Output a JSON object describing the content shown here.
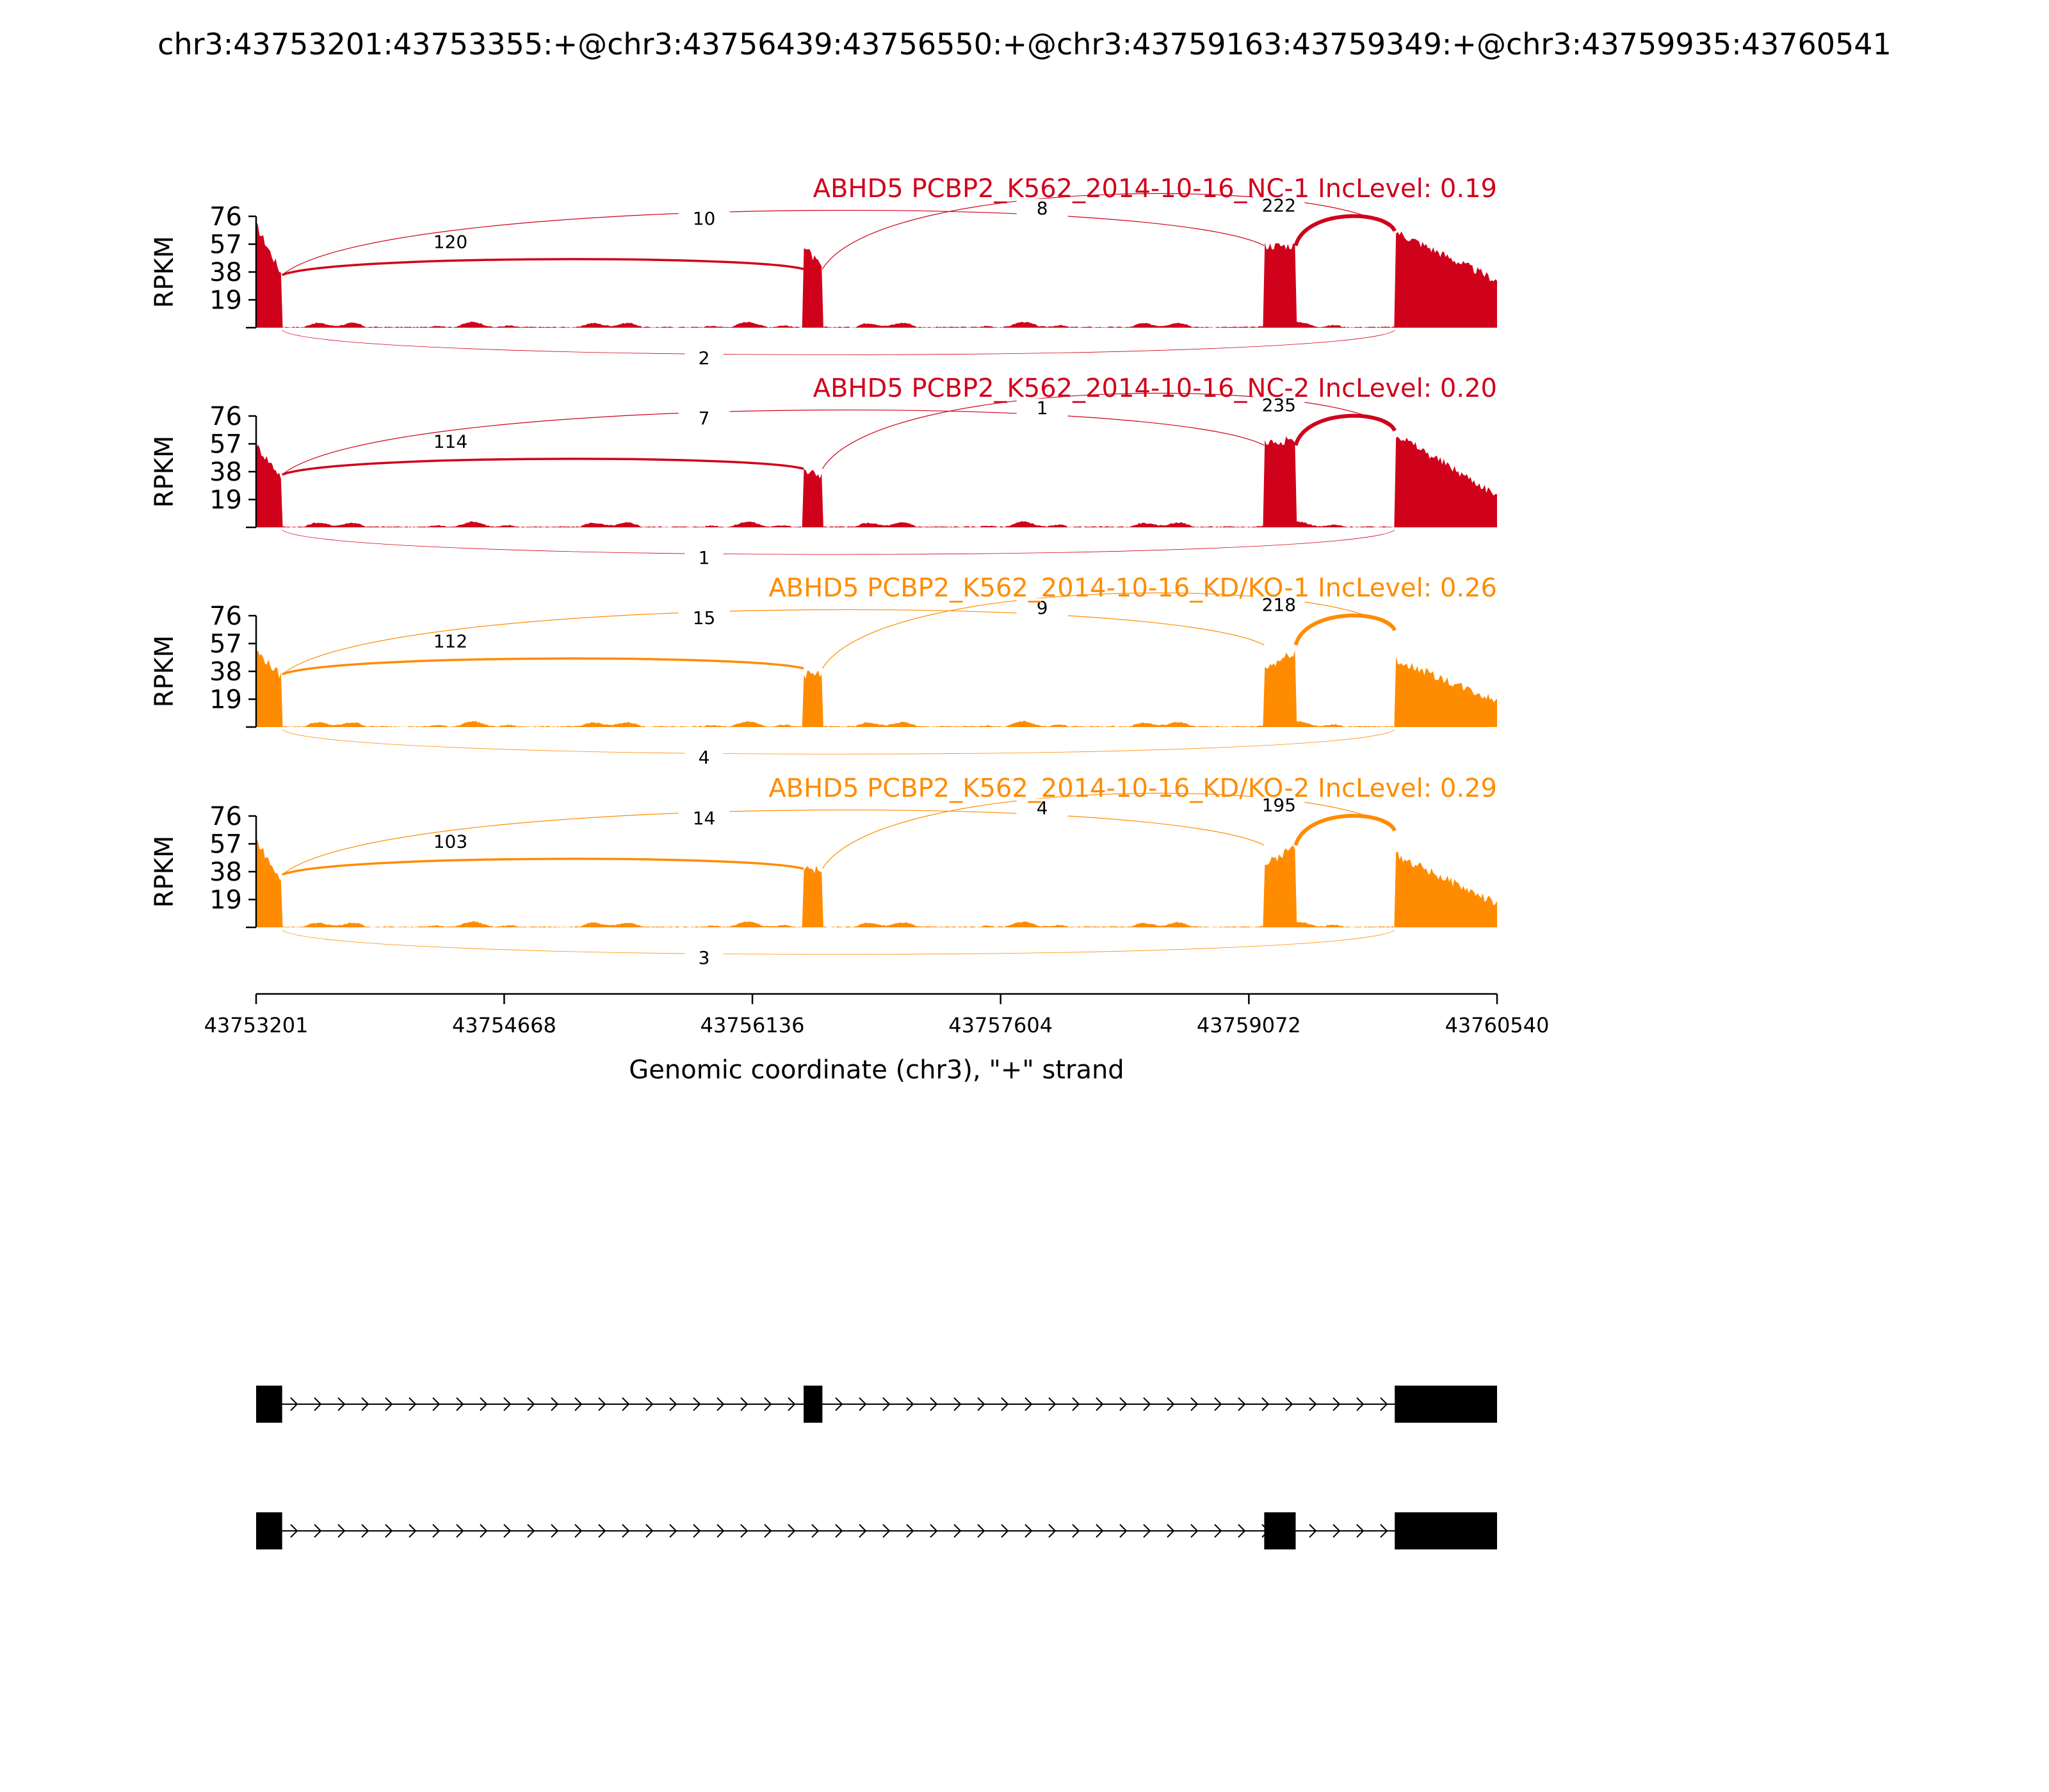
{
  "title": "chr3:43753201:43753355:+@chr3:43756439:43756550:+@chr3:43759163:43759349:+@chr3:43759935:43760541",
  "colors": {
    "nc": "#d0021b",
    "kd": "#ff8c00",
    "axis": "#000000",
    "exon": "#000000"
  },
  "chart_data": {
    "type": "area",
    "subtype": "sashimi",
    "ylabel": "RPKM",
    "y_ticks": [
      19,
      38,
      57,
      76
    ],
    "ylim": [
      0,
      76
    ],
    "xlim": [
      43753201,
      43760540
    ],
    "x_ticks": [
      43753201,
      43754668,
      43756136,
      43757604,
      43759072,
      43760540
    ],
    "x_tick_labels": [
      "43753201",
      "43754668",
      "43756136",
      "43757604",
      "43759072",
      "43760540"
    ],
    "xlabel": "Genomic coordinate (chr3), \"+\" strand",
    "grid": false,
    "samples": [
      {
        "label": "ABHD5 PCBP2_K562_2014-10-16_NC-1 IncLevel: 0.19",
        "color": "#d0021b",
        "exon_coverage": [
          {
            "start": 43753201,
            "end": 43753355,
            "peak": 70,
            "tail": 36
          },
          {
            "start": 43756439,
            "end": 43756550,
            "peak": 56,
            "tail": 40
          },
          {
            "start": 43759163,
            "end": 43759349,
            "peak": 56,
            "tail": 56
          },
          {
            "start": 43759935,
            "end": 43760540,
            "peak": 66,
            "tail": 32
          }
        ],
        "junctions": {
          "j_1_2": 120,
          "j_1_3": 10,
          "j_2_4": 8,
          "j_3_4": 222,
          "j_1_4": 2
        }
      },
      {
        "label": "ABHD5 PCBP2_K562_2014-10-16_NC-2 IncLevel: 0.20",
        "color": "#d0021b",
        "exon_coverage": [
          {
            "start": 43753201,
            "end": 43753355,
            "peak": 56,
            "tail": 34
          },
          {
            "start": 43756439,
            "end": 43756550,
            "peak": 38,
            "tail": 36
          },
          {
            "start": 43759163,
            "end": 43759349,
            "peak": 58,
            "tail": 60
          },
          {
            "start": 43759935,
            "end": 43760540,
            "peak": 64,
            "tail": 22
          }
        ],
        "junctions": {
          "j_1_2": 114,
          "j_1_3": 7,
          "j_2_4": 1,
          "j_3_4": 235,
          "j_1_4": 1
        }
      },
      {
        "label": "ABHD5 PCBP2_K562_2014-10-16_KD/KO-1 IncLevel: 0.26",
        "color": "#ff8c00",
        "exon_coverage": [
          {
            "start": 43753201,
            "end": 43753355,
            "peak": 52,
            "tail": 34
          },
          {
            "start": 43756439,
            "end": 43756550,
            "peak": 36,
            "tail": 36
          },
          {
            "start": 43759163,
            "end": 43759349,
            "peak": 40,
            "tail": 52
          },
          {
            "start": 43759935,
            "end": 43760540,
            "peak": 46,
            "tail": 18
          }
        ],
        "junctions": {
          "j_1_2": 112,
          "j_1_3": 15,
          "j_2_4": 9,
          "j_3_4": 218,
          "j_1_4": 4
        }
      },
      {
        "label": "ABHD5 PCBP2_K562_2014-10-16_KD/KO-2 IncLevel: 0.29",
        "color": "#ff8c00",
        "exon_coverage": [
          {
            "start": 43753201,
            "end": 43753355,
            "peak": 60,
            "tail": 30
          },
          {
            "start": 43756439,
            "end": 43756550,
            "peak": 42,
            "tail": 38
          },
          {
            "start": 43759163,
            "end": 43759349,
            "peak": 42,
            "tail": 56
          },
          {
            "start": 43759935,
            "end": 43760540,
            "peak": 50,
            "tail": 16
          }
        ],
        "junctions": {
          "j_1_2": 103,
          "j_1_3": 14,
          "j_2_4": 4,
          "j_3_4": 195,
          "j_1_4": 3
        }
      }
    ],
    "isoforms": [
      {
        "exons": [
          [
            43753201,
            43753355
          ],
          [
            43756439,
            43756550
          ],
          [
            43759935,
            43760541
          ]
        ]
      },
      {
        "exons": [
          [
            43753201,
            43753355
          ],
          [
            43759163,
            43759349
          ],
          [
            43759935,
            43760541
          ]
        ]
      }
    ]
  }
}
